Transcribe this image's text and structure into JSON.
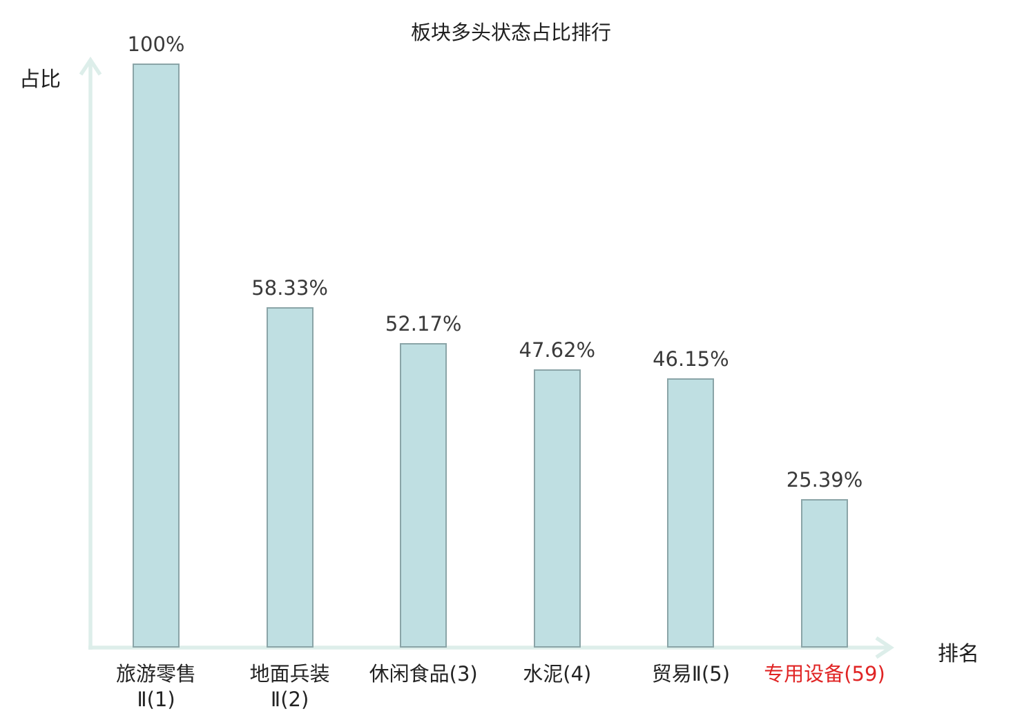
{
  "chart_data": {
    "type": "bar",
    "title": "板块多头状态占比排行",
    "ylabel": "占比",
    "xlabel": "排名",
    "ylim": [
      0,
      100
    ],
    "grid": false,
    "legend": null,
    "bars": [
      {
        "category": "旅游零售Ⅱ(1)",
        "label_lines": [
          "旅游零售",
          "Ⅱ(1)"
        ],
        "value": 100,
        "value_label": "100%",
        "highlight": false
      },
      {
        "category": "地面兵装Ⅱ(2)",
        "label_lines": [
          "地面兵装",
          "Ⅱ(2)"
        ],
        "value": 58.33,
        "value_label": "58.33%",
        "highlight": false
      },
      {
        "category": "休闲食品(3)",
        "label_lines": [
          "休闲食品(3)"
        ],
        "value": 52.17,
        "value_label": "52.17%",
        "highlight": false
      },
      {
        "category": "水泥(4)",
        "label_lines": [
          "水泥(4)"
        ],
        "value": 47.62,
        "value_label": "47.62%",
        "highlight": false
      },
      {
        "category": "贸易Ⅱ(5)",
        "label_lines": [
          "贸易Ⅱ(5)"
        ],
        "value": 46.15,
        "value_label": "46.15%",
        "highlight": false
      },
      {
        "category": "专用设备(59)",
        "label_lines": [
          "专用设备(59)"
        ],
        "value": 25.39,
        "value_label": "25.39%",
        "highlight": true
      }
    ],
    "colors": {
      "bar_fill": "#bfdfe2",
      "bar_border": "#8aa4a7",
      "axis": "#ddeeea",
      "title_text": "#1f1f1f",
      "value_text": "#3a3a3a",
      "category_text": "#232323",
      "highlight_text": "#e02424"
    }
  }
}
